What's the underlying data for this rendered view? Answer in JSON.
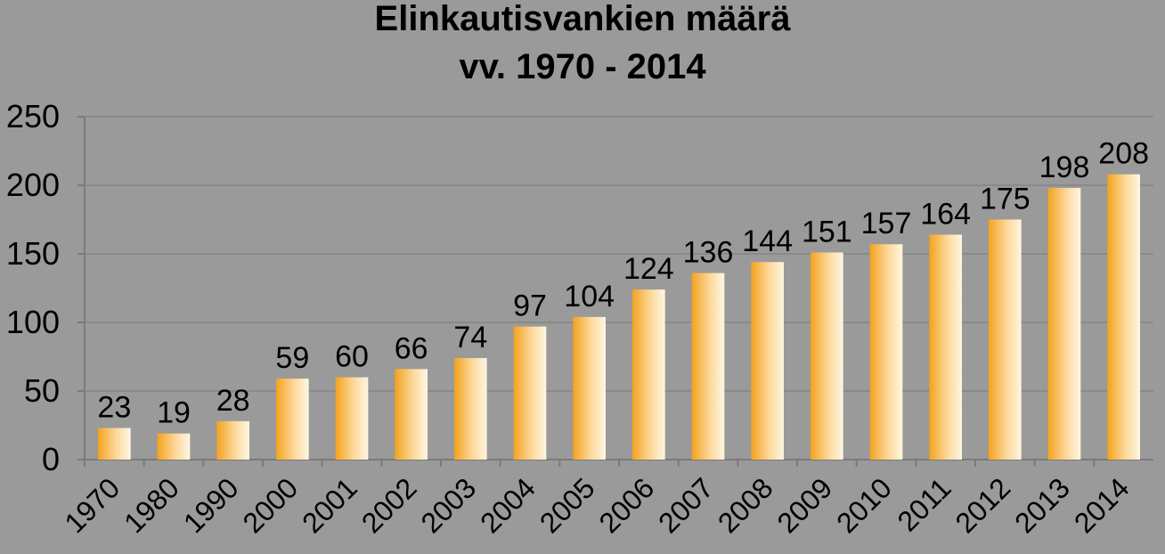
{
  "chart_data": {
    "type": "bar",
    "title": "Elinkautisvankien määrä",
    "subtitle": "vv. 1970 - 2014",
    "xlabel": "",
    "ylabel": "",
    "ylim": [
      0,
      250
    ],
    "yticks": [
      0,
      50,
      100,
      150,
      200,
      250
    ],
    "grid": true,
    "legend": "none",
    "categories": [
      "1970",
      "1980",
      "1990",
      "2000",
      "2001",
      "2002",
      "2003",
      "2004",
      "2005",
      "2006",
      "2007",
      "2008",
      "2009",
      "2010",
      "2011",
      "2012",
      "2013",
      "2014"
    ],
    "values": [
      23,
      19,
      28,
      59,
      60,
      66,
      74,
      97,
      104,
      124,
      136,
      144,
      151,
      157,
      164,
      175,
      198,
      208
    ],
    "data_labels": [
      "23",
      "19",
      "28",
      "59",
      "60",
      "66",
      "74",
      "97",
      "104",
      "124",
      "136",
      "144",
      "151",
      "157",
      "164",
      "175",
      "198",
      "208"
    ]
  },
  "colors": {
    "background": "#9a9a9a",
    "bar_dark": "#f5a623",
    "bar_light": "#fff4dc",
    "gridline": "#8a8a8a",
    "axis": "#7a7a7a"
  }
}
